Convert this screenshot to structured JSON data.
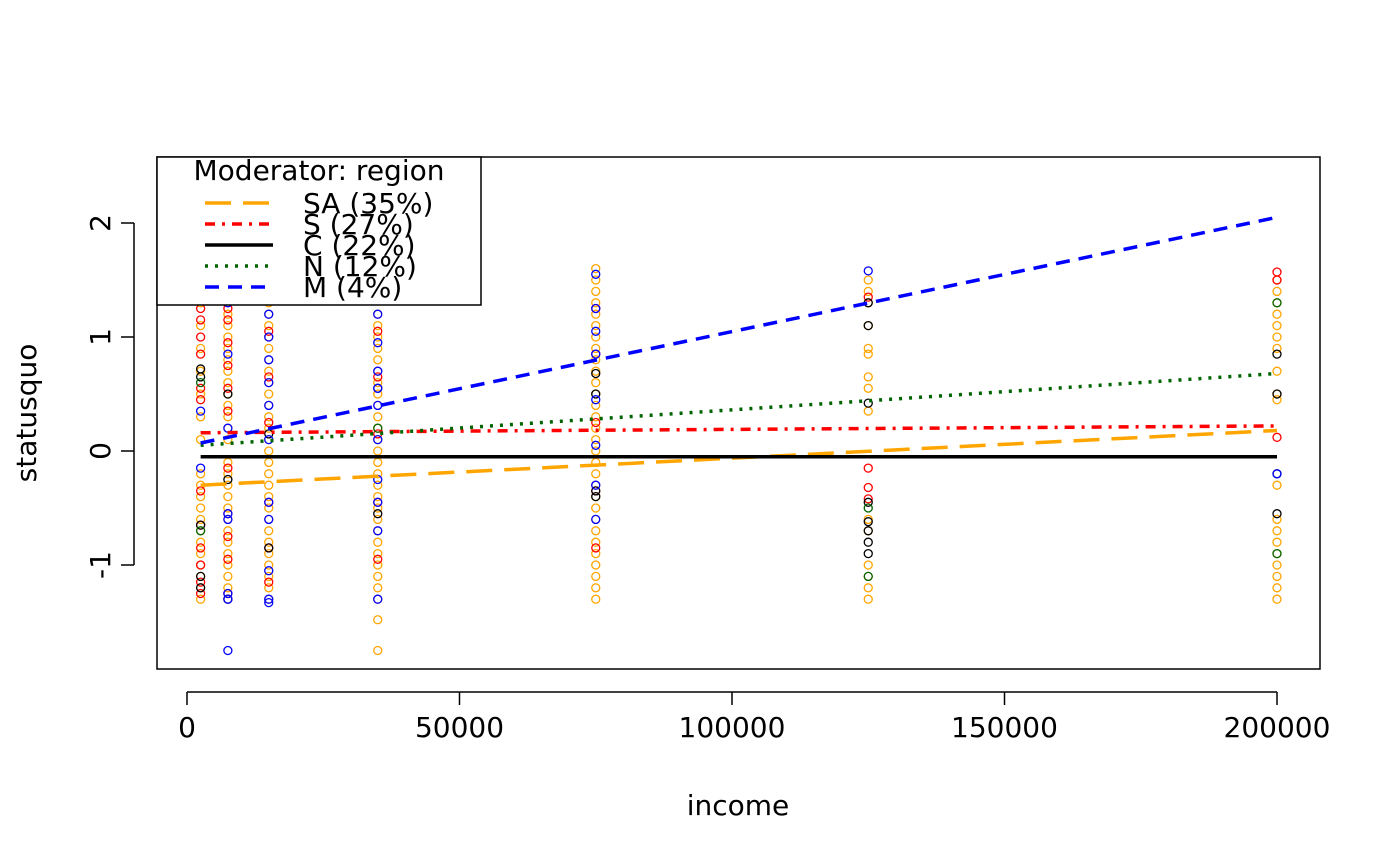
{
  "chart_data": {
    "type": "scatter",
    "title": "",
    "xlabel": "income",
    "ylabel": "statusquo",
    "xlim": [
      -5000,
      207000
    ],
    "ylim": [
      -1.9,
      2.6
    ],
    "x_ticks": [
      0,
      50000,
      100000,
      150000,
      200000
    ],
    "x_tick_labels": [
      "0",
      "50000",
      "100000",
      "150000",
      "200000"
    ],
    "y_ticks": [
      -1,
      0,
      1,
      2
    ],
    "y_tick_labels": [
      "-1",
      "0",
      "1",
      "2"
    ],
    "grid": false,
    "legend": {
      "title": "Moderator: region",
      "placement": "top-left",
      "entries": [
        "SA (35%)",
        "S (27%)",
        "C (22%)",
        "N (12%)",
        "M (4%)"
      ]
    },
    "series": [
      {
        "name": "SA (35%)",
        "color": "#FFA500",
        "line_style": "longdash",
        "fit_line": [
          [
            2500,
            -0.3
          ],
          [
            200000,
            0.18
          ]
        ],
        "points": {
          "2500": [
            -1.3,
            -1.2,
            -1.1,
            -1.0,
            -0.9,
            -0.8,
            -0.7,
            -0.6,
            -0.5,
            -0.4,
            -0.3,
            -0.2,
            0.1,
            0.3,
            0.5,
            0.7,
            0.9,
            1.1,
            1.3
          ],
          "7500": [
            -1.3,
            -1.2,
            -1.1,
            -1.0,
            -0.9,
            -0.8,
            -0.7,
            -0.6,
            -0.5,
            -0.4,
            -0.3,
            -0.2,
            -0.1,
            0.1,
            0.2,
            0.3,
            0.4,
            0.5,
            0.6,
            0.7,
            0.8,
            0.9,
            1.0,
            1.1,
            1.2,
            1.3
          ],
          "15000": [
            -1.3,
            -1.2,
            -1.1,
            -1.0,
            -0.9,
            -0.8,
            -0.7,
            -0.6,
            -0.5,
            -0.4,
            -0.3,
            -0.2,
            -0.1,
            0.0,
            0.1,
            0.2,
            0.3,
            0.4,
            0.5,
            0.6,
            0.7,
            0.8,
            0.9,
            1.0,
            1.1,
            1.2,
            1.3
          ],
          "35000": [
            -1.75,
            -1.48,
            -1.3,
            -1.2,
            -1.1,
            -1.0,
            -0.9,
            -0.8,
            -0.7,
            -0.6,
            -0.5,
            -0.4,
            -0.3,
            -0.2,
            -0.1,
            0.0,
            0.1,
            0.2,
            0.3,
            0.4,
            0.5,
            0.6,
            0.7,
            0.8,
            0.9,
            1.0,
            1.1,
            1.2
          ],
          "75000": [
            -1.3,
            -1.2,
            -1.1,
            -1.0,
            -0.9,
            -0.8,
            -0.7,
            -0.6,
            -0.5,
            -0.4,
            -0.3,
            -0.2,
            -0.1,
            0.0,
            0.1,
            0.2,
            0.3,
            0.4,
            0.5,
            0.6,
            0.7,
            0.8,
            0.9,
            1.0,
            1.1,
            1.2,
            1.3,
            1.4,
            1.5,
            1.6
          ],
          "125000": [
            -1.3,
            -1.2,
            -1.1,
            -1.0,
            -0.7,
            -0.6,
            0.35,
            0.55,
            0.65,
            0.85,
            0.9,
            1.1,
            1.3,
            1.4,
            1.5
          ],
          "200000": [
            -1.3,
            -1.2,
            -1.1,
            -1.0,
            -0.9,
            -0.8,
            -0.7,
            -0.6,
            -0.3,
            0.45,
            0.5,
            0.7,
            0.9,
            1.0,
            1.1,
            1.2,
            1.3,
            1.4,
            1.5
          ]
        }
      },
      {
        "name": "S (27%)",
        "color": "#FF0000",
        "line_style": "dotdash",
        "fit_line": [
          [
            2500,
            0.16
          ],
          [
            200000,
            0.22
          ]
        ],
        "points": {
          "2500": [
            -1.25,
            -1.15,
            -1.0,
            -0.85,
            -0.65,
            -0.35,
            0.45,
            0.55,
            0.85,
            1.0,
            1.15,
            1.25
          ],
          "7500": [
            -1.25,
            -0.95,
            -0.75,
            -0.55,
            -0.15,
            0.35,
            0.55,
            0.75,
            0.95,
            1.15,
            1.25
          ],
          "15000": [
            -1.15,
            -0.85,
            -0.45,
            0.25,
            0.65,
            1.05
          ],
          "35000": [
            -0.95,
            -0.45,
            0.15,
            0.65,
            1.05
          ],
          "75000": [
            -0.85,
            -0.35,
            0.25,
            0.85,
            1.25
          ],
          "125000": [
            -0.42,
            -0.32,
            -0.15,
            1.35
          ],
          "200000": [
            0.12,
            1.5,
            1.57
          ]
        }
      },
      {
        "name": "C (22%)",
        "color": "#000000",
        "line_style": "solid",
        "fit_line": [
          [
            2500,
            -0.05
          ],
          [
            200000,
            -0.05
          ]
        ],
        "points": {
          "2500": [
            -1.2,
            -1.1,
            -0.65,
            0.65,
            0.72
          ],
          "7500": [
            -1.3,
            -0.25,
            0.5
          ],
          "15000": [
            -0.85,
            0.15
          ],
          "35000": [
            -0.55,
            0.55
          ],
          "75000": [
            -0.4,
            -0.35,
            0.5,
            0.68
          ],
          "125000": [
            -0.9,
            -0.8,
            -0.7,
            -0.62,
            -0.45,
            0.42,
            1.1,
            1.3
          ],
          "200000": [
            -0.55,
            -0.2,
            0.5,
            0.85
          ]
        }
      },
      {
        "name": "N (12%)",
        "color": "#006400",
        "line_style": "dotted",
        "fit_line": [
          [
            2500,
            0.05
          ],
          [
            200000,
            0.68
          ]
        ],
        "points": {
          "2500": [
            -0.7,
            0.6
          ],
          "35000": [
            0.2
          ],
          "125000": [
            -1.1,
            -0.5
          ],
          "200000": [
            -0.9,
            1.3
          ]
        }
      },
      {
        "name": "M (4%)",
        "color": "#0000FF",
        "line_style": "dashed",
        "fit_line": [
          [
            2500,
            0.07
          ],
          [
            200000,
            2.05
          ]
        ],
        "points": {
          "2500": [
            -0.15,
            0.35
          ],
          "7500": [
            -1.75,
            -1.3,
            -1.25,
            -0.6,
            -0.55,
            0.2,
            0.85,
            1.3
          ],
          "15000": [
            -1.33,
            -1.3,
            -1.05,
            -0.6,
            -0.45,
            0.1,
            0.4,
            0.6,
            0.8,
            1.0,
            1.2
          ],
          "35000": [
            -1.3,
            -0.7,
            -0.45,
            -0.25,
            0.1,
            0.4,
            0.55,
            0.7,
            0.95,
            1.2
          ],
          "75000": [
            -0.6,
            -0.3,
            0.05,
            0.45,
            0.85,
            1.05,
            1.25,
            1.55
          ],
          "125000": [
            1.58
          ],
          "200000": [
            -0.2
          ]
        }
      }
    ]
  }
}
